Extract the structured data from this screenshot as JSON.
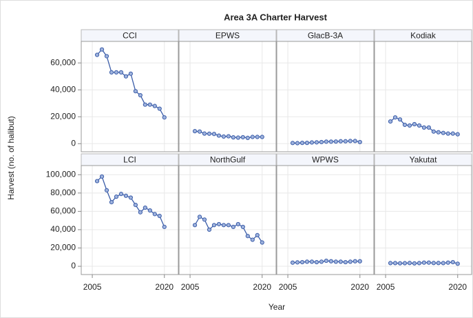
{
  "chart_data": {
    "type": "line",
    "title": "Area 3A Charter Harvest",
    "x_label": "Year",
    "y_label": "Harvest (no. of halibut)",
    "color": "#3a5ca8",
    "grid": true,
    "x": [
      2006,
      2007,
      2008,
      2009,
      2010,
      2011,
      2012,
      2013,
      2014,
      2015,
      2016,
      2017,
      2018,
      2019,
      2020
    ],
    "xlim": [
      2002.7,
      2022.9
    ],
    "xticks": [
      2005,
      2020
    ],
    "rows": [
      {
        "ylim": [
          -6000,
          76000
        ],
        "yticks": [
          0,
          {
            "value": 20000,
            "label": "20,000"
          },
          {
            "value": 40000,
            "label": "40,000"
          },
          {
            "value": 60000,
            "label": "60,000"
          }
        ],
        "panels": [
          {
            "name": "CCI",
            "values": [
              66000,
              70000,
              65000,
              53000,
              53000,
              53000,
              50000,
              52000,
              39000,
              36000,
              29000,
              29000,
              28000,
              26000,
              19500
            ]
          },
          {
            "name": "EPWS",
            "values": [
              9300,
              9000,
              7500,
              7400,
              7200,
              6000,
              5300,
              5500,
              4700,
              4500,
              4800,
              4300,
              5000,
              5000,
              5000
            ]
          },
          {
            "name": "GlacB-3A",
            "values": [
              500,
              400,
              600,
              600,
              900,
              1000,
              1200,
              1500,
              1500,
              1600,
              1800,
              1800,
              2000,
              2000,
              1200
            ]
          },
          {
            "name": "Kodiak",
            "values": [
              16500,
              19500,
              18000,
              14000,
              13500,
              14500,
              13500,
              12000,
              12000,
              9000,
              8500,
              8000,
              7500,
              7500,
              7000
            ]
          }
        ]
      },
      {
        "ylim": [
          -9000,
          110000
        ],
        "yticks": [
          0,
          {
            "value": 20000,
            "label": "20,000"
          },
          {
            "value": 40000,
            "label": "40,000"
          },
          {
            "value": 60000,
            "label": "60,000"
          },
          {
            "value": 80000,
            "label": "80,000"
          },
          {
            "value": 100000,
            "label": "100,000"
          }
        ],
        "panels": [
          {
            "name": "LCI",
            "values": [
              93000,
              98000,
              83000,
              70000,
              76000,
              79000,
              77000,
              75000,
              67000,
              59000,
              64000,
              61000,
              57000,
              55000,
              43000
            ]
          },
          {
            "name": "NorthGulf",
            "values": [
              45000,
              54000,
              51000,
              40000,
              45000,
              46000,
              45000,
              45000,
              43000,
              46000,
              43000,
              33000,
              29000,
              34000,
              26000
            ]
          },
          {
            "name": "WPWS",
            "values": [
              4000,
              4300,
              4500,
              5000,
              5000,
              4500,
              5000,
              6000,
              5500,
              5000,
              5000,
              4500,
              5000,
              5500,
              5500
            ]
          },
          {
            "name": "Yakutat",
            "values": [
              3500,
              3500,
              3300,
              3400,
              3600,
              3200,
              3500,
              4000,
              4000,
              3600,
              3600,
              3500,
              4000,
              4500,
              2800
            ]
          }
        ]
      }
    ]
  }
}
